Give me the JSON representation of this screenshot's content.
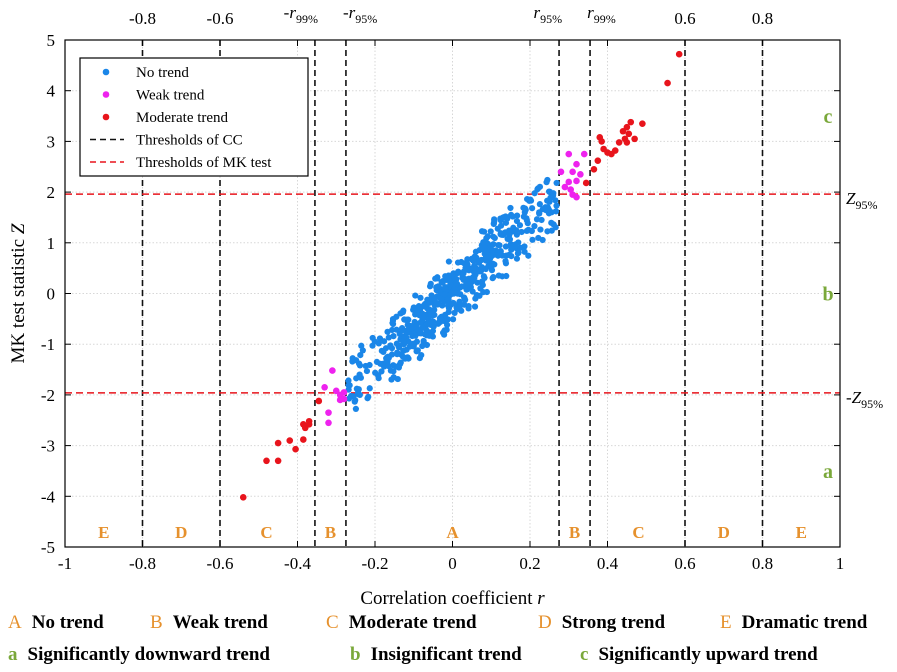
{
  "chart_data": {
    "type": "scatter",
    "xlabel": "Correlation coefficient r",
    "ylabel": "MK test statistic Z",
    "xlim": [
      -1,
      1
    ],
    "ylim": [
      -5,
      5
    ],
    "x_ticks": [
      "-1",
      "-0.8",
      "-0.6",
      "-0.4",
      "-0.2",
      "0",
      "0.2",
      "0.4",
      "0.6",
      "0.8",
      "1"
    ],
    "y_ticks": [
      "-5",
      "-4",
      "-3",
      "-2",
      "-1",
      "0",
      "1",
      "2",
      "3",
      "4",
      "5"
    ],
    "grid": true,
    "legend_position": "top-left",
    "legend": [
      {
        "label": "No trend",
        "type": "dot",
        "color": "#1a86e8"
      },
      {
        "label": "Weak trend",
        "type": "dot",
        "color": "#ee22ee"
      },
      {
        "label": "Moderate trend",
        "type": "dot",
        "color": "#e8141c"
      },
      {
        "label": "Thresholds of CC",
        "type": "dash",
        "color": "#111111"
      },
      {
        "label": "Thresholds of MK test",
        "type": "dash",
        "color": "#e8141c"
      }
    ],
    "cc_thresholds": [
      -0.8,
      -0.6,
      -0.355,
      -0.275,
      0.275,
      0.355,
      0.6,
      0.8
    ],
    "mk_thresholds": [
      -1.96,
      1.96
    ],
    "top_labels": [
      {
        "x": -0.8,
        "text": "-0.8"
      },
      {
        "x": -0.6,
        "text": "-0.6"
      },
      {
        "x": 0.6,
        "text": "0.6"
      },
      {
        "x": 0.8,
        "text": "0.8"
      }
    ],
    "top_sub_labels": [
      {
        "x": -0.355,
        "pre": "-",
        "var": "r",
        "sub": "99%"
      },
      {
        "x": -0.275,
        "pre": "-",
        "var": "r",
        "sub": "95%"
      },
      {
        "x": 0.275,
        "pre": "",
        "var": "r",
        "sub": "95%"
      },
      {
        "x": 0.355,
        "pre": "",
        "var": "r",
        "sub": "99%"
      }
    ],
    "right_z_labels": [
      {
        "y": 1.96,
        "pre": "",
        "var": "Z",
        "sub": "95%"
      },
      {
        "y": -1.96,
        "pre": "-",
        "var": "Z",
        "sub": "95%"
      }
    ],
    "right_zone_labels": [
      {
        "y": 3.5,
        "text": "c"
      },
      {
        "y": 0,
        "text": "b"
      },
      {
        "y": -3.5,
        "text": "a"
      }
    ],
    "zone_labels": [
      {
        "x": -0.9,
        "text": "E"
      },
      {
        "x": -0.7,
        "text": "D"
      },
      {
        "x": -0.48,
        "text": "C"
      },
      {
        "x": -0.315,
        "text": "B"
      },
      {
        "x": 0.0,
        "text": "A"
      },
      {
        "x": 0.315,
        "text": "B"
      },
      {
        "x": 0.48,
        "text": "C"
      },
      {
        "x": 0.7,
        "text": "D"
      },
      {
        "x": 0.9,
        "text": "E"
      }
    ],
    "zone_label_y": -4.7,
    "zone_color": "#e6912d",
    "abc_color": "#7aa83a",
    "series": [
      {
        "name": "Moderate trend",
        "color": "#e8141c",
        "points": [
          [
            0.585,
            4.72
          ],
          [
            0.555,
            4.15
          ],
          [
            0.49,
            3.35
          ],
          [
            0.46,
            3.38
          ],
          [
            0.45,
            3.28
          ],
          [
            0.455,
            3.15
          ],
          [
            0.44,
            3.2
          ],
          [
            0.47,
            3.05
          ],
          [
            0.445,
            3.05
          ],
          [
            0.43,
            2.98
          ],
          [
            0.45,
            2.98
          ],
          [
            0.42,
            2.82
          ],
          [
            0.41,
            2.75
          ],
          [
            0.39,
            2.85
          ],
          [
            0.38,
            3.08
          ],
          [
            0.385,
            3.0
          ],
          [
            0.4,
            2.78
          ],
          [
            0.375,
            2.62
          ],
          [
            0.365,
            2.45
          ],
          [
            0.345,
            2.18
          ],
          [
            -0.54,
            -4.02
          ],
          [
            -0.48,
            -3.3
          ],
          [
            -0.45,
            -3.3
          ],
          [
            -0.45,
            -2.95
          ],
          [
            -0.42,
            -2.9
          ],
          [
            -0.405,
            -3.07
          ],
          [
            -0.385,
            -2.88
          ],
          [
            -0.38,
            -2.65
          ],
          [
            -0.385,
            -2.58
          ],
          [
            -0.37,
            -2.58
          ],
          [
            -0.37,
            -2.52
          ],
          [
            -0.345,
            -2.12
          ]
        ]
      },
      {
        "name": "Weak trend",
        "color": "#ee22ee",
        "points": [
          [
            0.34,
            2.75
          ],
          [
            0.32,
            2.55
          ],
          [
            0.3,
            2.75
          ],
          [
            0.31,
            2.4
          ],
          [
            0.3,
            2.2
          ],
          [
            0.32,
            2.22
          ],
          [
            0.33,
            2.35
          ],
          [
            0.29,
            2.1
          ],
          [
            0.305,
            2.05
          ],
          [
            0.31,
            1.95
          ],
          [
            0.32,
            1.9
          ],
          [
            0.28,
            2.4
          ],
          [
            -0.33,
            -1.85
          ],
          [
            -0.31,
            -1.52
          ],
          [
            -0.3,
            -1.92
          ],
          [
            -0.29,
            -2.0
          ],
          [
            -0.29,
            -2.1
          ],
          [
            -0.32,
            -2.35
          ],
          [
            -0.32,
            -2.55
          ],
          [
            -0.28,
            -2.08
          ],
          [
            -0.28,
            -1.95
          ]
        ]
      }
    ]
  },
  "captions": {
    "row1": [
      {
        "letter": "A",
        "text": "No trend"
      },
      {
        "letter": "B",
        "text": "Weak trend"
      },
      {
        "letter": "C",
        "text": "Moderate trend"
      },
      {
        "letter": "D",
        "text": "Strong trend"
      },
      {
        "letter": "E",
        "text": "Dramatic trend"
      }
    ],
    "row2": [
      {
        "letter": "a",
        "text": "Significantly downward trend"
      },
      {
        "letter": "b",
        "text": "Insignificant trend"
      },
      {
        "letter": "c",
        "text": "Significantly upward trend"
      }
    ]
  }
}
